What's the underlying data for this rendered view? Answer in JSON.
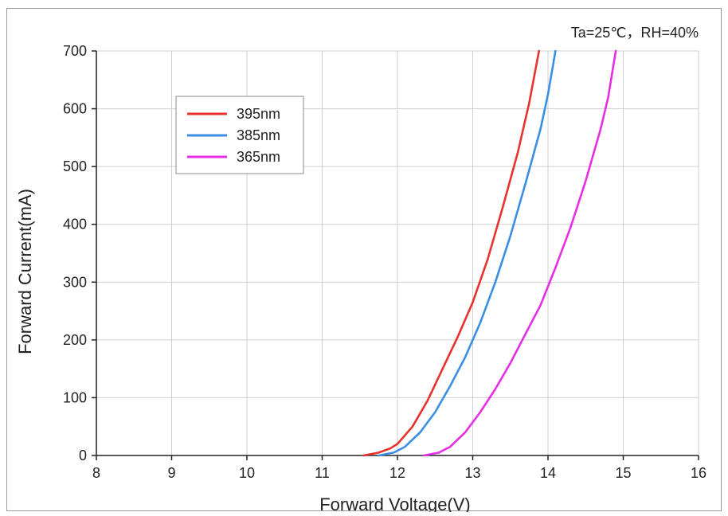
{
  "chart_data": {
    "type": "line",
    "annotation": "Ta=25℃，RH=40%",
    "xlabel": "Forward Voltage(V)",
    "ylabel": "Forward Current(mA)",
    "xlim": [
      8,
      16
    ],
    "ylim": [
      0,
      700
    ],
    "xticks": [
      8,
      9,
      10,
      11,
      12,
      13,
      14,
      15,
      16
    ],
    "yticks": [
      0,
      100,
      200,
      300,
      400,
      500,
      600,
      700
    ],
    "grid": true,
    "legend_position": "top-left",
    "series": [
      {
        "name": "395nm",
        "color": "#e8322d",
        "x": [
          11.55,
          11.75,
          11.9,
          12.0,
          12.2,
          12.4,
          12.6,
          12.8,
          13.0,
          13.2,
          13.4,
          13.6,
          13.75,
          13.88
        ],
        "y": [
          0,
          5,
          12,
          20,
          50,
          95,
          150,
          205,
          265,
          340,
          430,
          525,
          610,
          700
        ]
      },
      {
        "name": "385nm",
        "color": "#3a8ee6",
        "x": [
          11.75,
          11.95,
          12.1,
          12.3,
          12.5,
          12.7,
          12.9,
          13.1,
          13.3,
          13.5,
          13.7,
          13.9,
          14.0,
          14.1
        ],
        "y": [
          0,
          5,
          15,
          40,
          75,
          120,
          170,
          230,
          300,
          380,
          470,
          565,
          625,
          700
        ]
      },
      {
        "name": "365nm",
        "color": "#e62ee6",
        "x": [
          12.35,
          12.55,
          12.7,
          12.9,
          13.1,
          13.3,
          13.5,
          13.7,
          13.9,
          14.1,
          14.3,
          14.5,
          14.7,
          14.8,
          14.9
        ],
        "y": [
          0,
          5,
          15,
          40,
          75,
          115,
          160,
          210,
          260,
          325,
          395,
          475,
          565,
          620,
          700
        ]
      }
    ]
  }
}
